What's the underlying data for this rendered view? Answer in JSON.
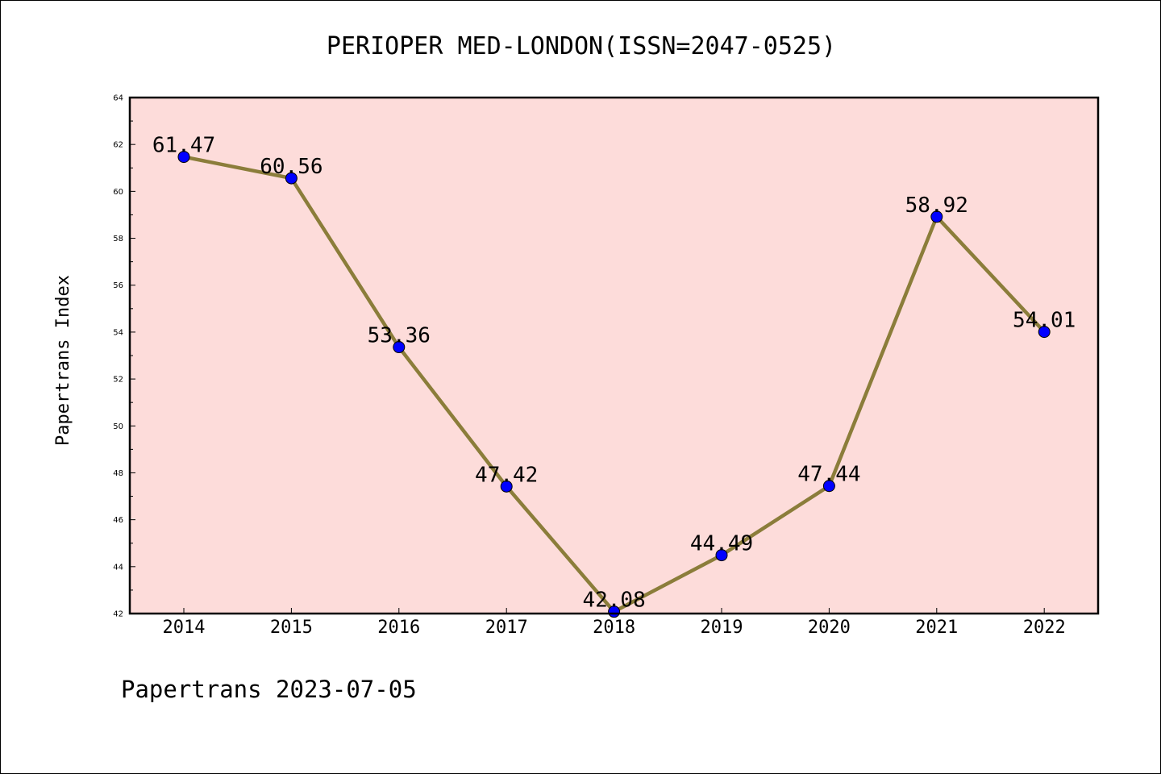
{
  "chart_data": {
    "type": "line",
    "title": "PERIOPER MED-LONDON(ISSN=2047-0525)",
    "xlabel": "",
    "ylabel": "Papertrans Index",
    "x": [
      "2014",
      "2015",
      "2016",
      "2017",
      "2018",
      "2019",
      "2020",
      "2021",
      "2022"
    ],
    "series": [
      {
        "values": [
          61.47,
          60.56,
          53.36,
          47.42,
          42.08,
          44.49,
          47.44,
          58.92,
          54.01
        ],
        "data_labels": [
          "61.47",
          "60.56",
          "53.36",
          "47.42",
          "42.08",
          "44.49",
          "47.44",
          "58.92",
          "54.01"
        ]
      }
    ],
    "yticks": [
      "42",
      "44",
      "46",
      "48",
      "50",
      "52",
      "54",
      "56",
      "58",
      "60",
      "62",
      "64"
    ],
    "ylim": [
      42,
      64
    ],
    "grid": false,
    "legend": "none",
    "footer": "Papertrans 2023-07-05",
    "colors": {
      "plot_background": "#fddcda",
      "line": "#8b7d3a",
      "marker": "#0000ff",
      "frame": "#000000"
    }
  }
}
